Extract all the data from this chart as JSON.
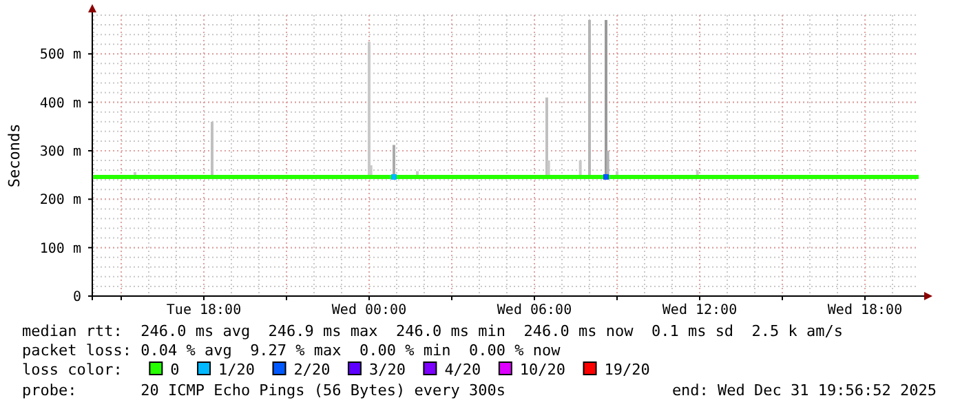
{
  "chart_data": {
    "type": "line",
    "ylabel": "Seconds",
    "legend_title": "loss color:",
    "legend": "bottom",
    "grid": true,
    "xlim": [
      "2025-12-30T13:57",
      "2025-12-31T19:57"
    ],
    "xticks": [
      {
        "value": "2025-12-30T15:00",
        "label": null
      },
      {
        "value": "2025-12-30T18:00",
        "label": "Tue 18:00"
      },
      {
        "value": "2025-12-30T21:00",
        "label": null
      },
      {
        "value": "2025-12-31T00:00",
        "label": "Wed 00:00"
      },
      {
        "value": "2025-12-31T03:00",
        "label": null
      },
      {
        "value": "2025-12-31T06:00",
        "label": "Wed 06:00"
      },
      {
        "value": "2025-12-31T09:00",
        "label": null
      },
      {
        "value": "2025-12-31T12:00",
        "label": "Wed 12:00"
      },
      {
        "value": "2025-12-31T15:00",
        "label": null
      },
      {
        "value": "2025-12-31T18:00",
        "label": "Wed 18:00"
      }
    ],
    "ylim": [
      0,
      580
    ],
    "yticks": [
      0,
      {
        "value": 100,
        "label": "100 m"
      },
      {
        "value": 200,
        "label": "200 m"
      },
      {
        "value": 300,
        "label": "300 m"
      },
      {
        "value": 400,
        "label": "400 m"
      },
      {
        "value": 500,
        "label": "500 m"
      }
    ],
    "series": [
      {
        "type": "bar",
        "x": [
          "2025-12-30T15:30",
          "2025-12-30T18:18",
          "2025-12-31T00:00",
          "2025-12-31T00:04",
          "2025-12-31T00:54",
          "2025-12-31T01:45",
          "2025-12-31T06:27",
          "2025-12-31T06:31",
          "2025-12-31T07:40",
          "2025-12-31T08:00",
          "2025-12-31T08:36",
          "2025-12-31T08:40",
          "2025-12-31T09:00",
          "2025-12-31T11:55"
        ],
        "base": [
          246,
          246,
          246,
          246,
          246,
          246,
          246,
          246,
          246,
          246,
          246,
          246,
          246,
          246
        ],
        "values": [
          10,
          114,
          279,
          24,
          66,
          12,
          164,
          34,
          34,
          324,
          324,
          54,
          12,
          14
        ],
        "colors": [
          "#c8c8c8",
          "#c0c0c0",
          "#c8c8c8",
          "#c8c8c8",
          "#aaaaaa",
          "#c8c8c8",
          "#c0c0c0",
          "#c8c8c8",
          "#c8c8c8",
          "#b4b4b4",
          "#999999",
          "#b4b4b4",
          "#c8c8c8",
          "#c8c8c8"
        ]
      },
      {
        "name": "0",
        "color": "#26ff00",
        "x": [
          "2025-12-30T13:57",
          "2025-12-30T18:00",
          "2025-12-31T00:00",
          "2025-12-31T06:00",
          "2025-12-31T12:00",
          "2025-12-31T19:57"
        ],
        "values": [
          246,
          246,
          246,
          246,
          246,
          246
        ]
      },
      {
        "name": "1/20",
        "type": "scatter",
        "marker": "square",
        "color": "#00b8ff",
        "x": [
          "2025-12-31T00:54"
        ],
        "values": [
          246
        ]
      },
      {
        "name": "2/20",
        "type": "scatter",
        "marker": "square",
        "color": "#0059ff",
        "x": [
          "2025-12-31T08:36"
        ],
        "values": [
          246
        ]
      },
      {
        "name": "3/20",
        "type": "scatter",
        "color": "#5e00ff"
      },
      {
        "name": "4/20",
        "type": "scatter",
        "color": "#7e00ff"
      },
      {
        "name": "10/20",
        "type": "scatter",
        "color": "#dd00ff"
      },
      {
        "name": "19/20",
        "type": "scatter",
        "color": "#ff0000"
      }
    ],
    "annotations": [
      "median rtt:  246.0 ms avg  246.9 ms max  246.0 ms min  246.0 ms now  0.1 ms sd  2.5 k am/s",
      "packet loss: 0.04 % avg  9.27 % max  0.00 % min  0.00 % now",
      "probe:       20 ICMP Echo Pings (56 Bytes) every 300s",
      "end: Wed Dec 31 19:56:52 2025"
    ]
  }
}
